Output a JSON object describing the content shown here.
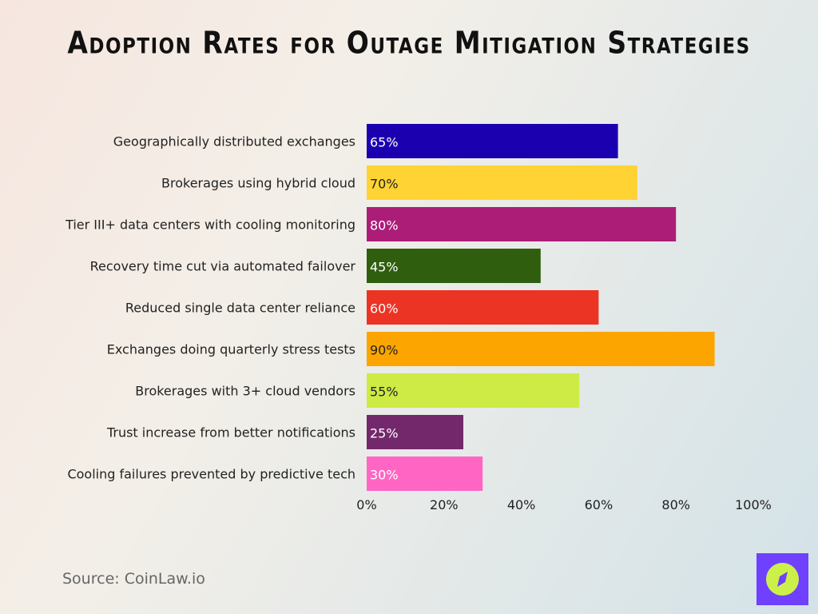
{
  "chart_data": {
    "type": "bar",
    "orientation": "horizontal",
    "title": "Adoption Rates for Outage Mitigation Strategies",
    "categories": [
      "Geographically distributed exchanges",
      "Brokerages using hybrid cloud",
      "Tier III+ data centers with cooling monitoring",
      "Recovery time cut via automated failover",
      "Reduced single data center reliance",
      "Exchanges doing quarterly stress tests",
      "Brokerages with 3+ cloud vendors",
      "Trust increase from better notifications",
      "Cooling failures prevented by predictive tech"
    ],
    "values": [
      65,
      70,
      80,
      45,
      60,
      90,
      55,
      25,
      30
    ],
    "data_labels": [
      "65%",
      "70%",
      "80%",
      "45%",
      "60%",
      "90%",
      "55%",
      "25%",
      "30%"
    ],
    "colors": [
      "#1b00b0",
      "#ffd333",
      "#ac1d78",
      "#2f5e0e",
      "#eb3424",
      "#fca500",
      "#cdeb44",
      "#74286c",
      "#ff66c4"
    ],
    "label_colors": [
      "#ffffff",
      "#222222",
      "#ffffff",
      "#ffffff",
      "#ffffff",
      "#222222",
      "#222222",
      "#ffffff",
      "#ffffff"
    ],
    "xlim": [
      0,
      100
    ],
    "xticks": [
      "0%",
      "20%",
      "40%",
      "60%",
      "80%",
      "100%"
    ],
    "grid": false,
    "xlabel": "",
    "ylabel": ""
  },
  "source": "Source: CoinLaw.io",
  "logo": {
    "icon": "compass-icon",
    "colors": [
      "#7040ff",
      "#ccf04a"
    ]
  }
}
